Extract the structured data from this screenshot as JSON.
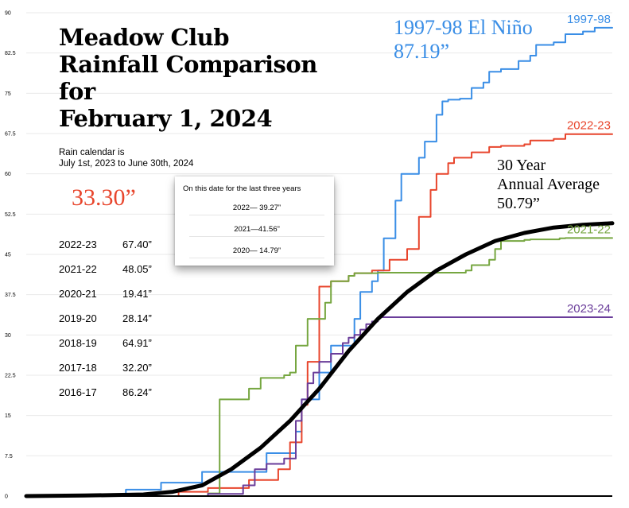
{
  "title_lines": [
    "Meadow Club",
    "Rainfall Comparison",
    "for",
    "February 1, 2024"
  ],
  "subtitle_lines": [
    "Rain calendar is",
    "July 1st, 2023 to June 30th, 2024"
  ],
  "current_total": "33.30”",
  "season_totals": [
    {
      "season": "2022-23",
      "total": "67.40”"
    },
    {
      "season": "2021-22",
      "total": "48.05”"
    },
    {
      "season": "2020-21",
      "total": "19.41”"
    },
    {
      "season": "2019-20",
      "total": "28.14”"
    },
    {
      "season": "2018-19",
      "total": "64.91”"
    },
    {
      "season": "2017-18",
      "total": "32.20”"
    },
    {
      "season": "2016-17",
      "total": "86.24”"
    }
  ],
  "popup": {
    "heading": "On this date for the last three years",
    "rows": [
      "2022— 39.27”",
      "2021—41.56”",
      "2020— 14.79”"
    ]
  },
  "el_nino_annotation": [
    "1997-98 El Niño",
    "87.19”"
  ],
  "average_annotation": [
    "30 Year",
    "Annual Average",
    "50.79”"
  ],
  "colors": {
    "1997-98": "#3a8ee6",
    "2022-23": "#e8452c",
    "2021-22": "#76a640",
    "2023-24": "#6a3d9a",
    "average": "#000000",
    "current_total": "#e8452c"
  },
  "chart_data": {
    "type": "line",
    "title": "Meadow Club Rainfall Comparison for February 1, 2024",
    "xlabel": "",
    "ylabel": "",
    "x_range": [
      0,
      1
    ],
    "ylim": [
      0,
      90
    ],
    "yticks": [
      "0",
      "7.5",
      "15",
      "22.5",
      "30",
      "37.5",
      "45",
      "52.5",
      "60",
      "67.5",
      "75",
      "82.5",
      "90"
    ],
    "grid": true,
    "series": [
      {
        "name": "1997-98",
        "x": [
          0,
          0.16,
          0.17,
          0.22,
          0.23,
          0.3,
          0.3,
          0.38,
          0.41,
          0.46,
          0.47,
          0.5,
          0.52,
          0.56,
          0.57,
          0.59,
          0.6,
          0.61,
          0.63,
          0.64,
          0.67,
          0.68,
          0.7,
          0.71,
          0.72,
          0.74,
          0.76,
          0.78,
          0.79,
          0.81,
          0.84,
          0.86,
          0.87,
          0.9,
          0.92,
          0.95,
          0.97,
          1.0
        ],
        "values": [
          0,
          0,
          1.2,
          1.2,
          2.5,
          2.5,
          4.5,
          4.5,
          8,
          12,
          18,
          23,
          28,
          33,
          38,
          40,
          42,
          48,
          55,
          60,
          63,
          66,
          71,
          73.5,
          73.8,
          74,
          76,
          77,
          79,
          79.5,
          81,
          82,
          84,
          84.5,
          86,
          86.5,
          87.2,
          87.2
        ]
      },
      {
        "name": "2022-23",
        "x": [
          0,
          0.25,
          0.26,
          0.3,
          0.31,
          0.37,
          0.38,
          0.43,
          0.45,
          0.47,
          0.48,
          0.5,
          0.52,
          0.55,
          0.56,
          0.59,
          0.62,
          0.65,
          0.67,
          0.69,
          0.7,
          0.72,
          0.73,
          0.76,
          0.79,
          0.81,
          0.85,
          0.86,
          0.9,
          0.92,
          1.0
        ],
        "values": [
          0,
          0,
          0.8,
          0.8,
          1.5,
          1.5,
          3,
          5,
          10,
          17,
          25,
          39,
          40,
          41,
          41.5,
          42,
          44,
          46,
          52,
          57,
          60,
          62,
          63,
          64,
          65,
          65.2,
          65.5,
          66.2,
          66.5,
          67.4,
          67.4
        ]
      },
      {
        "name": "2021-22",
        "x": [
          0,
          0.3,
          0.31,
          0.33,
          0.35,
          0.38,
          0.4,
          0.44,
          0.45,
          0.46,
          0.48,
          0.51,
          0.52,
          0.55,
          0.56,
          0.6,
          0.75,
          0.76,
          0.79,
          0.8,
          0.81,
          0.85,
          0.86,
          0.91,
          0.92,
          1.0
        ],
        "values": [
          0,
          0,
          0.5,
          18,
          18,
          20,
          22,
          22.5,
          23,
          28,
          33,
          36,
          40,
          41,
          41.5,
          41.6,
          42,
          43,
          44,
          46,
          47.5,
          47.7,
          47.8,
          48,
          48.05,
          48.05
        ]
      },
      {
        "name": "2023-24",
        "x": [
          0,
          0.3,
          0.31,
          0.37,
          0.39,
          0.41,
          0.44,
          0.46,
          0.47,
          0.48,
          0.49,
          0.5,
          0.52,
          0.54,
          0.55,
          0.56,
          0.57,
          0.58,
          0.59,
          0.6,
          0.6,
          1.0
        ],
        "values": [
          0,
          0,
          0.4,
          2,
          5,
          6,
          7,
          14,
          18,
          21,
          23,
          25,
          26.5,
          28.5,
          29.5,
          30,
          31,
          32,
          32.5,
          33.3,
          33.3,
          33.3
        ]
      },
      {
        "name": "30 Year Annual Average",
        "x": [
          0,
          0.1,
          0.2,
          0.25,
          0.3,
          0.35,
          0.4,
          0.45,
          0.5,
          0.55,
          0.6,
          0.65,
          0.7,
          0.75,
          0.8,
          0.85,
          0.9,
          0.95,
          1.0
        ],
        "values": [
          0,
          0.1,
          0.3,
          0.8,
          2,
          5,
          9,
          14,
          20,
          27,
          33,
          38,
          42,
          45,
          47.5,
          49,
          50,
          50.5,
          50.8
        ]
      }
    ]
  }
}
